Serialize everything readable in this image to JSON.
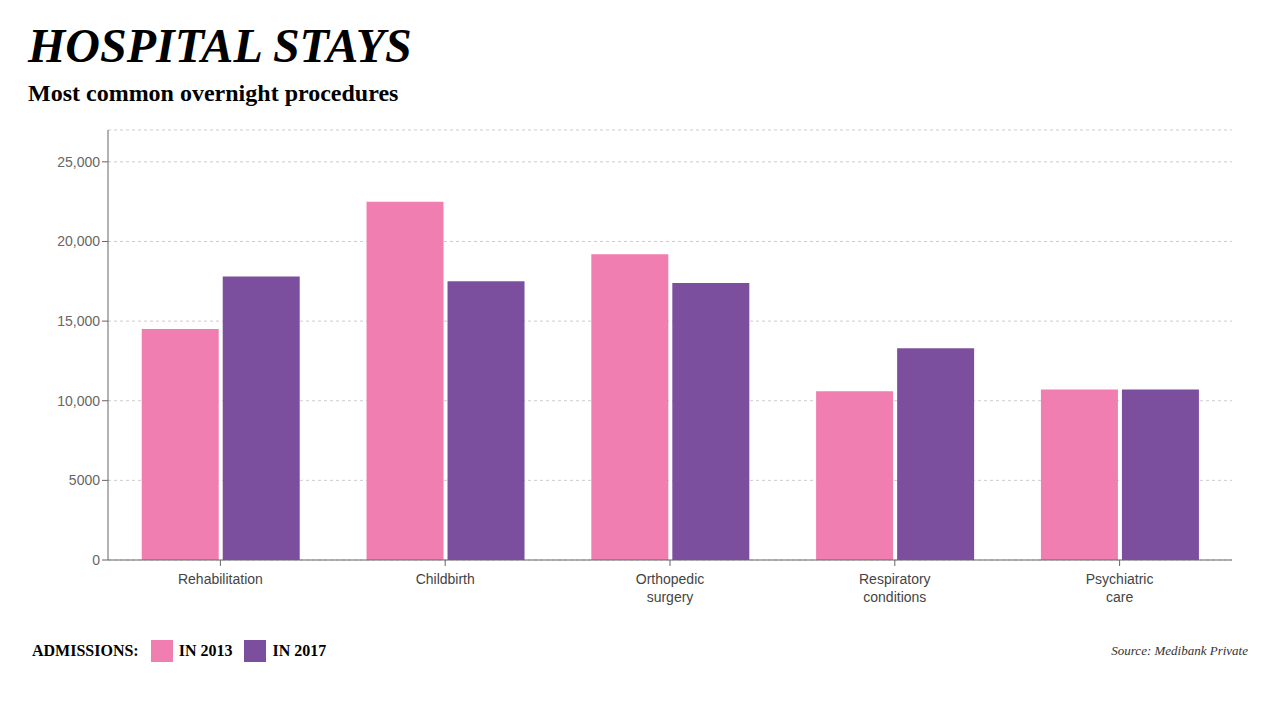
{
  "chart_data": {
    "type": "bar",
    "title": "HOSPITAL STAYS",
    "subtitle": "Most common overnight procedures",
    "categories": [
      "Rehabilitation",
      "Childbirth",
      "Orthopedic\nsurgery",
      "Respiratory\nconditions",
      "Psychiatric\ncare"
    ],
    "series": [
      {
        "name": "IN 2013",
        "color": "#F07EB0",
        "values": [
          14500,
          22500,
          19200,
          10600,
          10700
        ]
      },
      {
        "name": "IN 2017",
        "color": "#7B4F9E",
        "values": [
          17800,
          17500,
          17400,
          13300,
          10700
        ]
      }
    ],
    "ylim": [
      0,
      27000
    ],
    "yticks": [
      0,
      5000,
      {
        "value": 10000,
        "label": "10,000"
      },
      {
        "value": 15000,
        "label": "15,000"
      },
      {
        "value": 20000,
        "label": "20,000"
      },
      {
        "value": 25000,
        "label": "25,000"
      }
    ],
    "grid": true,
    "legend_title": "ADMISSIONS:",
    "source": "Source: Medibank Private"
  }
}
